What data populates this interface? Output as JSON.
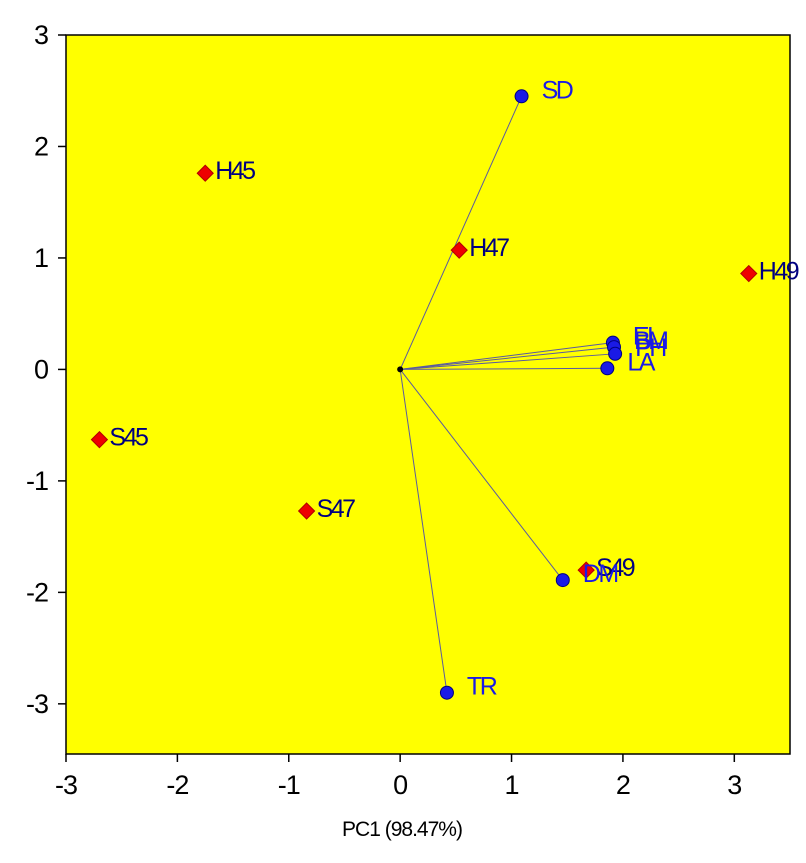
{
  "chart_data": {
    "type": "scatter",
    "subtype": "biplot",
    "title": "",
    "xlabel": "PC1 (98.47%)",
    "ylabel": "",
    "xlim": [
      -3,
      3.5
    ],
    "ylim": [
      -3.45,
      3
    ],
    "xticks": [
      -3,
      -2,
      -1,
      0,
      1,
      2,
      3
    ],
    "yticks": [
      -3,
      -2,
      -1,
      0,
      1,
      2,
      3
    ],
    "tick_labels_x": [
      "-3",
      "-2",
      "-1",
      "0",
      "1",
      "2",
      "3"
    ],
    "tick_labels_y": [
      "-3",
      "-2",
      "-1",
      "0",
      "1",
      "2",
      "3"
    ],
    "grid": false,
    "background_color": "#ffff00",
    "series": [
      {
        "type": "scores",
        "marker": "diamond",
        "color": "#ee0000",
        "label_color": "#000080",
        "points": [
          {
            "label": "H45",
            "x": -1.75,
            "y": 1.76
          },
          {
            "label": "H47",
            "x": 0.53,
            "y": 1.07
          },
          {
            "label": "H49",
            "x": 3.13,
            "y": 0.86
          },
          {
            "label": "S45",
            "x": -2.7,
            "y": -0.63
          },
          {
            "label": "S47",
            "x": -0.84,
            "y": -1.27
          },
          {
            "label": "S49",
            "x": 1.67,
            "y": -1.8
          }
        ]
      },
      {
        "type": "loadings",
        "marker": "circle",
        "color": "#1a1ae6",
        "line_color": "#5a5aa0",
        "label_color": "#1a1ae6",
        "origin": [
          0,
          0
        ],
        "points": [
          {
            "label": "SD",
            "x": 1.09,
            "y": 2.45
          },
          {
            "label": "EL",
            "x": 1.91,
            "y": 0.24
          },
          {
            "label": "BM",
            "x": 1.92,
            "y": 0.2
          },
          {
            "label": "PH",
            "x": 1.93,
            "y": 0.14
          },
          {
            "label": "LA",
            "x": 1.86,
            "y": 0.01
          },
          {
            "label": "DM",
            "x": 1.46,
            "y": -1.89
          },
          {
            "label": "TR",
            "x": 0.42,
            "y": -2.9
          }
        ]
      }
    ]
  }
}
